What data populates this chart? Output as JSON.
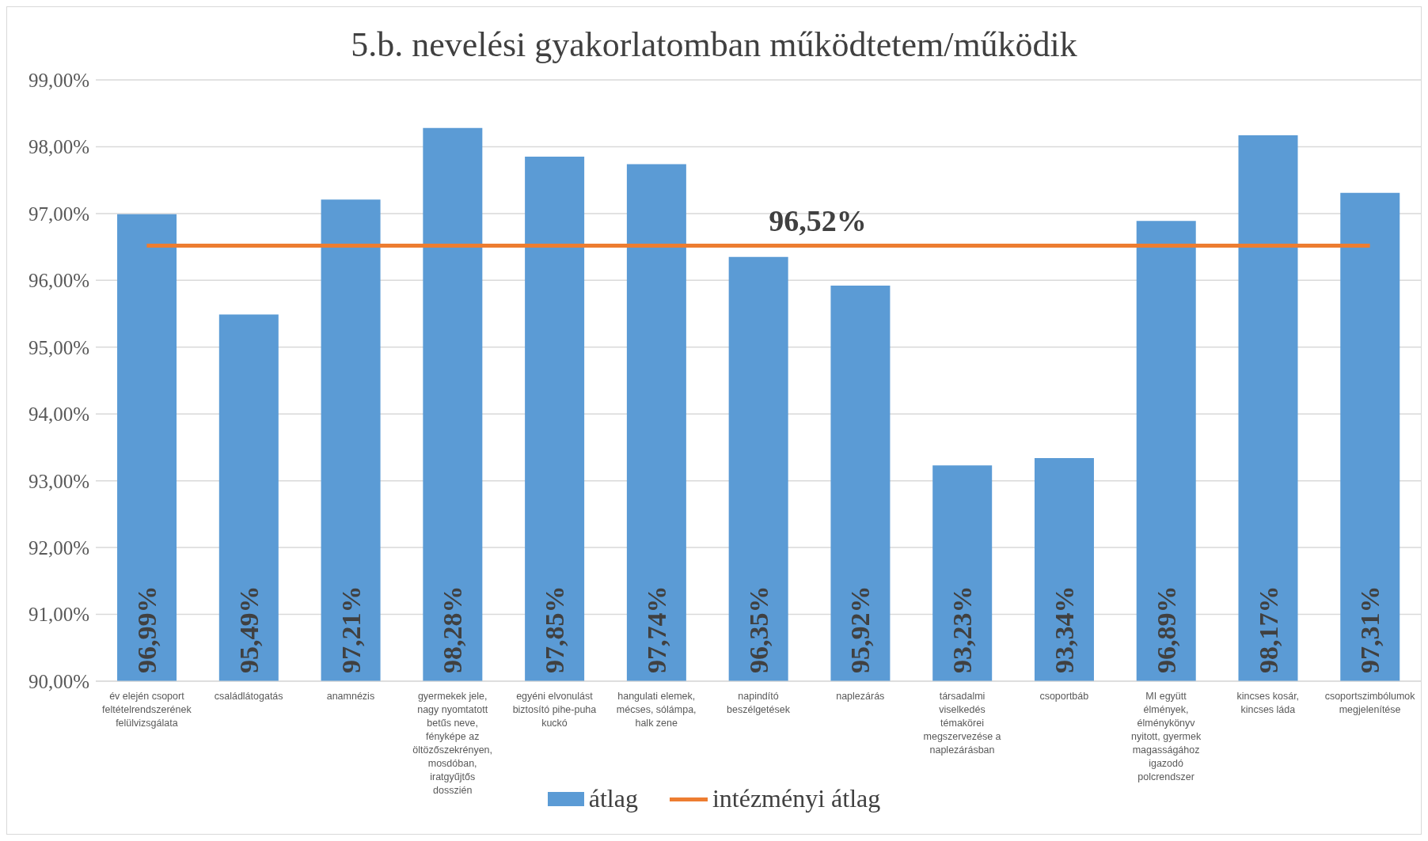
{
  "chart_data": {
    "type": "bar",
    "title": "5.b. nevelési gyakorlatomban működtetem/működik",
    "categories": [
      "év elején csoport feltételrendszerének felülvizsgálata",
      "családlátogatás",
      "anamnézis",
      "gyermekek jele, nagy nyomtatott betűs neve, fényképe az öltözőszekrényen, mosdóban, iratgyűjtős dosszién",
      "egyéni elvonulást biztosító pihe-puha kuckó",
      "hangulati elemek, mécses, sólámpa, halk zene",
      "napindító beszélgetések",
      "naplezárás",
      "társadalmi viselkedés témakörei megszervezése a naplezárásban",
      "csoportbáb",
      "MI együtt élmények, élménykönyv nyitott, gyermek magasságához igazodó polcrendszer",
      "kincses kosár, kincses láda",
      "csoportszimbólumok megjelenítése"
    ],
    "series": [
      {
        "name": "átlag",
        "color": "#5b9bd5",
        "values": [
          96.99,
          95.49,
          97.21,
          98.28,
          97.85,
          97.74,
          96.35,
          95.92,
          93.23,
          93.34,
          96.89,
          98.17,
          97.31
        ],
        "value_labels": [
          "96,99%",
          "95,49%",
          "97,21%",
          "98,28%",
          "97,85%",
          "97,74%",
          "96,35%",
          "95,92%",
          "93,23%",
          "93,34%",
          "96,89%",
          "98,17%",
          "97,31%"
        ]
      },
      {
        "name": "intézményi átlag",
        "type": "line",
        "color": "#ed7d31",
        "values": [
          96.52,
          96.52,
          96.52,
          96.52,
          96.52,
          96.52,
          96.52,
          96.52,
          96.52,
          96.52,
          96.52,
          96.52,
          96.52
        ],
        "value_labels": [
          null,
          null,
          null,
          null,
          null,
          null,
          "96,52%",
          null,
          null,
          null,
          null,
          null,
          null
        ]
      }
    ],
    "ylim": [
      90,
      99
    ],
    "yticks": [
      {
        "value": 90,
        "label": "90,00%"
      },
      {
        "value": 91,
        "label": "91,00%"
      },
      {
        "value": 92,
        "label": "92,00%"
      },
      {
        "value": 93,
        "label": "93,00%"
      },
      {
        "value": 94,
        "label": "94,00%"
      },
      {
        "value": 95,
        "label": "95,00%"
      },
      {
        "value": 96,
        "label": "96,00%"
      },
      {
        "value": 97,
        "label": "97,00%"
      },
      {
        "value": 98,
        "label": "98,00%"
      },
      {
        "value": 99,
        "label": "99,00%"
      }
    ],
    "grid": "y",
    "legend": "bottom",
    "marker": "none"
  }
}
